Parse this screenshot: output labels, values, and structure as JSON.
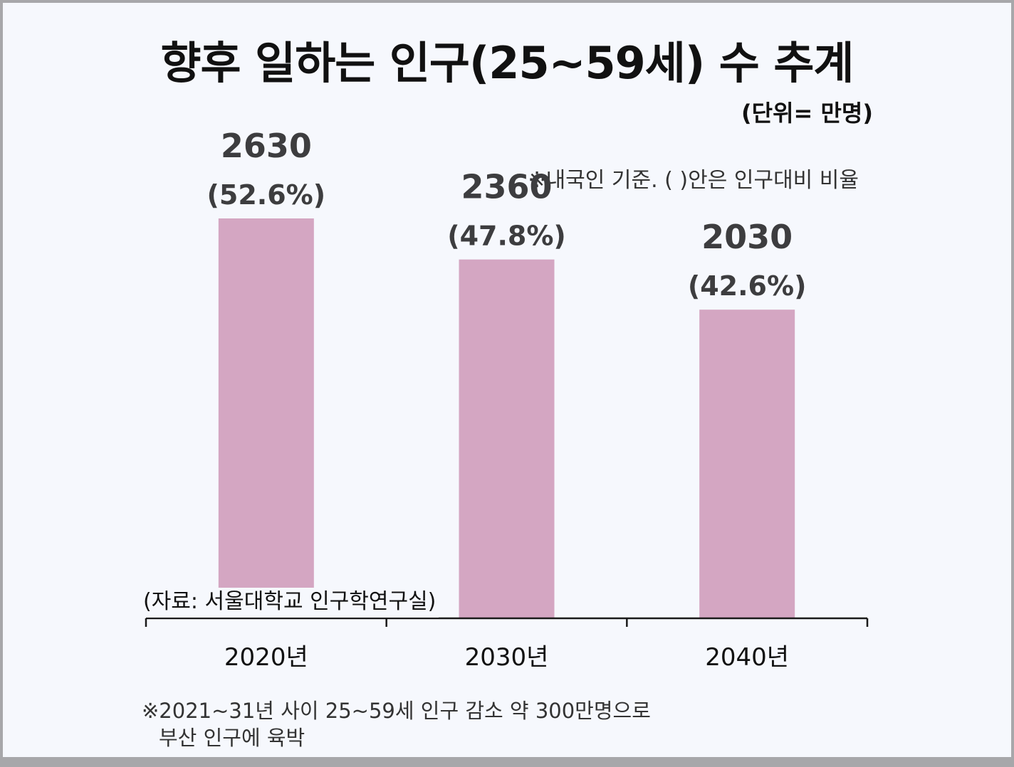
{
  "header": {
    "title": "향후 일하는 인구(25~59세) 수 추계",
    "unit": "(단위= 만명)",
    "note": "※내국인 기준. ( )안은 인구대비 비율"
  },
  "source": "(자료: 서울대학교 인구학연구실)",
  "footnote": {
    "line1": "※2021~31년 사이 25~59세 인구 감소 약 300만명으로",
    "line2": "부산 인구에 육박"
  },
  "colors": {
    "bar": "#d4a6c2",
    "axis": "#1a1a1a",
    "label": "#3d3d3f",
    "background": "#f6f8fd"
  },
  "chart_data": {
    "type": "bar",
    "title": "향후 일하는 인구(25~59세) 수 추계",
    "xlabel": "",
    "ylabel": "",
    "ylim": [
      0,
      2630
    ],
    "grid": false,
    "categories": [
      "2020년",
      "2030년",
      "2040년"
    ],
    "values": [
      2630,
      2360,
      2030
    ],
    "value_labels": [
      "2630",
      "2360",
      "2030"
    ],
    "percent_labels": [
      "(52.6%)",
      "(47.8%)",
      "(42.6%)"
    ]
  }
}
